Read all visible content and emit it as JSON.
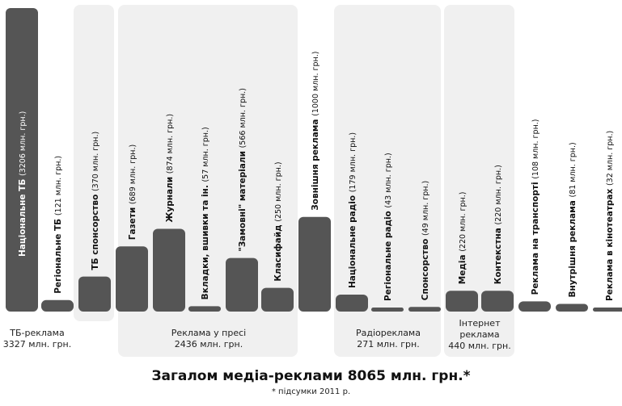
{
  "chart_data": {
    "type": "bar",
    "unit": "млн. грн.",
    "bars": [
      {
        "label": "Національне ТБ",
        "value_text": "(3206 млн. грн.)",
        "value": 3206
      },
      {
        "label": "Регіональне ТБ",
        "value_text": "(121 млн. грн.)",
        "value": 121
      },
      {
        "label": "ТБ спонсорство",
        "value_text": "(370 млн. грн.)",
        "value": 370
      },
      {
        "label": "Газети",
        "value_text": "(689 млн. грн.)",
        "value": 689
      },
      {
        "label": "Журнали",
        "value_text": "(874 млн. грн.)",
        "value": 874
      },
      {
        "label": "Вкладки, вшивки та ін.",
        "value_text": "(57 млн. грн.)",
        "value": 57
      },
      {
        "label": "\"Замовні\" матеріали",
        "value_text": "(566 млн. грн.)",
        "value": 566
      },
      {
        "label": "Класифайд",
        "value_text": "(250 млн. грн.)",
        "value": 250
      },
      {
        "label": "Зовнішня реклама",
        "value_text": "(1000 млн. грн.)",
        "value": 1000
      },
      {
        "label": "Національне радіо",
        "value_text": "(179 млн. грн.)",
        "value": 179
      },
      {
        "label": "Регіональне радіо",
        "value_text": "(43 млн. грн.)",
        "value": 43
      },
      {
        "label": "Спонсорство",
        "value_text": "(49 млн. грн.)",
        "value": 49
      },
      {
        "label": "Медіа",
        "value_text": "(220 млн. грн.)",
        "value": 220
      },
      {
        "label": "Контекстна",
        "value_text": "(220 млн. грн.)",
        "value": 220
      },
      {
        "label": "Реклама на транспорті",
        "value_text": "(108 млн. грн.)",
        "value": 108
      },
      {
        "label": "Внутрішня реклама",
        "value_text": "(81 млн. грн.)",
        "value": 81
      },
      {
        "label": "Реклама в кінотеатрах",
        "value_text": "(32 млн. грн.)",
        "value": 32
      }
    ],
    "groups": [
      {
        "label": "ТБ-реклама",
        "total": "3327 млн. грн."
      },
      {
        "label": "Реклама у пресі",
        "total": "2436 млн. грн."
      },
      {
        "label": "Радіореклама",
        "total": "271 млн. грн."
      },
      {
        "label": "Інтернет реклама",
        "total": "440 млн. грн."
      }
    ],
    "title": "Загалом медіа-реклами 8065 млн. грн.*",
    "note": "* підсумки 2011 р.",
    "colors": {
      "bar": "#555555",
      "group_shade": "#f0f0f0",
      "text": "#111111"
    }
  }
}
